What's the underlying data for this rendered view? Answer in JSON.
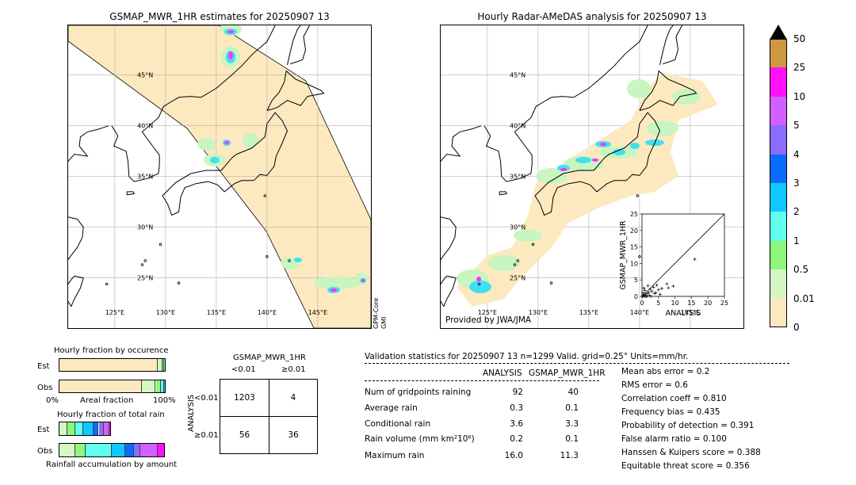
{
  "left_map": {
    "title": "GSMAP_MWR_1HR estimates for 20250907 13",
    "satellite_label_1": "GPM-Core",
    "satellite_label_2": "GMI"
  },
  "right_map": {
    "title": "Hourly Radar-AMeDAS analysis for 20250907 13",
    "credit": "Provided by JWA/JMA"
  },
  "lat_labels": [
    "45°N",
    "40°N",
    "35°N",
    "30°N",
    "25°N"
  ],
  "lon_labels": [
    "125°E",
    "130°E",
    "135°E",
    "140°E",
    "145°E"
  ],
  "colors": {
    "swath": "#fde9c0",
    "rain_light": "#c8f5c0",
    "rain_cyan": "#40e0f0",
    "rain_blue": "#2080ff",
    "rain_magenta": "#ff30ff",
    "rain_purple": "#a060ff"
  },
  "colorbar": {
    "labels": [
      "0",
      "0.01",
      "0.5",
      "1",
      "2",
      "3",
      "4",
      "5",
      "10",
      "25",
      "50"
    ],
    "colors": [
      "#fde9c0",
      "#d4f7c4",
      "#8cf77c",
      "#60fff0",
      "#10c8ff",
      "#0a6cff",
      "#8a6cff",
      "#d060ff",
      "#ff10ff",
      "#cc9940"
    ]
  },
  "chart_data": [
    {
      "type": "scatter",
      "title": "",
      "xlabel": "ANALYSIS",
      "ylabel": "GSMAP_MWR_1HR",
      "xlim": [
        0,
        25
      ],
      "ylim": [
        0,
        25
      ],
      "xticks": [
        "0",
        "5",
        "10",
        "15",
        "20",
        "25"
      ],
      "yticks": [
        "0",
        "5",
        "10",
        "15",
        "20",
        "25"
      ],
      "points": [
        [
          16.0,
          11.3
        ],
        [
          7.5,
          3.8
        ],
        [
          8.0,
          2.6
        ],
        [
          9.5,
          3.1
        ],
        [
          6.0,
          2.4
        ],
        [
          5.0,
          2.0
        ],
        [
          4.5,
          3.4
        ],
        [
          3.5,
          2.8
        ],
        [
          3.0,
          1.5
        ],
        [
          2.5,
          2.2
        ],
        [
          2.0,
          1.2
        ],
        [
          1.5,
          0.8
        ],
        [
          1.0,
          0.5
        ],
        [
          0.8,
          1.8
        ],
        [
          0.5,
          0.3
        ],
        [
          0.3,
          0.2
        ],
        [
          1.2,
          0.1
        ],
        [
          2.2,
          0.4
        ],
        [
          3.8,
          0.9
        ],
        [
          0.6,
          2.5
        ],
        [
          1.8,
          3.2
        ],
        [
          4.2,
          1.1
        ],
        [
          5.5,
          0.6
        ],
        [
          0.2,
          0.0
        ],
        [
          0.9,
          0.0
        ],
        [
          1.5,
          0.0
        ],
        [
          2.8,
          0.0
        ],
        [
          0.4,
          1.0
        ]
      ]
    },
    {
      "type": "bar",
      "title": "Hourly fraction by occurence",
      "categories": [
        "Est",
        "Obs"
      ],
      "xlabel": "Areal fraction",
      "xticks": [
        "0%",
        "100%"
      ],
      "series": [
        {
          "values": [
            0.92,
            0.77
          ]
        },
        {
          "values": [
            0.04,
            0.13
          ]
        },
        {
          "values": [
            0.02,
            0.05
          ]
        },
        {
          "values": [
            0.015,
            0.03
          ]
        },
        {
          "values": [
            0.005,
            0.02
          ]
        }
      ],
      "segment_colors": [
        "#fde9c0",
        "#d4f7c4",
        "#8cf77c",
        "#60fff0",
        "#10c8ff"
      ]
    },
    {
      "type": "bar",
      "title": "Hourly fraction of total rain",
      "categories": [
        "Est",
        "Obs"
      ],
      "xlabel": "Rainfall accumulation by amount",
      "series": [
        {
          "values": [
            0.06,
            0.12
          ]
        },
        {
          "values": [
            0.06,
            0.08
          ]
        },
        {
          "values": [
            0.06,
            0.2
          ]
        },
        {
          "values": [
            0.08,
            0.1
          ]
        },
        {
          "values": [
            0.04,
            0.07
          ]
        },
        {
          "values": [
            0.04,
            0.05
          ]
        },
        {
          "values": [
            0.04,
            0.13
          ]
        },
        {
          "values": [
            0.02,
            0.06
          ]
        }
      ],
      "segment_colors": [
        "#d4f7c4",
        "#8cf77c",
        "#60fff0",
        "#10c8ff",
        "#0a6cff",
        "#8a6cff",
        "#d060ff",
        "#ff10ff"
      ],
      "totals": [
        0.4,
        0.81
      ]
    }
  ],
  "contingency": {
    "title": "GSMAP_MWR_1HR",
    "col_headers": [
      "<0.01",
      "≥0.01"
    ],
    "row_headers": [
      "<0.01",
      "≥0.01"
    ],
    "side_label": "ANALYSIS",
    "cells": [
      [
        "1203",
        "4"
      ],
      [
        "56",
        "36"
      ]
    ]
  },
  "validation": {
    "header": "Validation statistics for 20250907 13  n=1299 Valid. grid=0.25° Units=mm/hr.",
    "col_analysis": "ANALYSIS",
    "col_gsmap": "GSMAP_MWR_1HR",
    "rows": [
      {
        "label": "Num of gridpoints raining",
        "analysis": "92",
        "gsmap": "40"
      },
      {
        "label": "Average rain",
        "analysis": "0.3",
        "gsmap": "0.1"
      },
      {
        "label": "Conditional rain",
        "analysis": "3.6",
        "gsmap": "3.3"
      },
      {
        "label": "Rain volume (mm km²10⁶)",
        "analysis": "0.2",
        "gsmap": "0.1"
      },
      {
        "label": "Maximum rain",
        "analysis": "16.0",
        "gsmap": "11.3"
      }
    ],
    "scores": [
      "Mean abs error =    0.2",
      "RMS error =    0.6",
      "Correlation coeff =  0.810",
      "Frequency bias =  0.435",
      "Probability of detection =  0.391",
      "False alarm ratio =  0.100",
      "Hanssen & Kuipers score =  0.388",
      "Equitable threat score =  0.356"
    ]
  }
}
